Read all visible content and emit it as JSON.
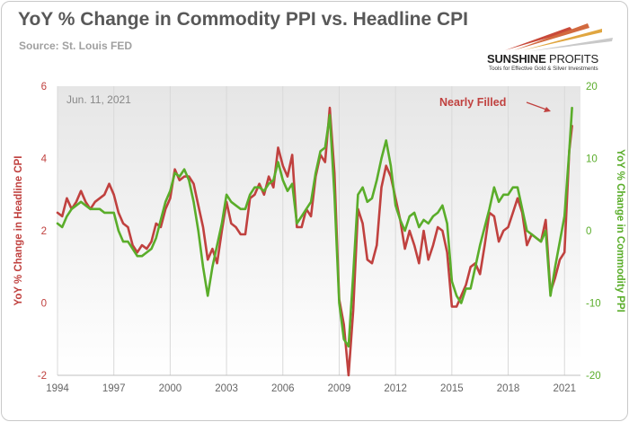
{
  "header": {
    "title": "YoY % Change in Commodity PPI vs. Headline CPI",
    "source": "Source: St. Louis FED"
  },
  "logo": {
    "name_bold": "SUNSHINE",
    "name_thin": "PROFITS",
    "tagline": "Tools for Effective Gold & Silver Investments",
    "icon": "sun-rays-logo-icon"
  },
  "colors": {
    "cpi": "#c0413f",
    "ppi": "#5aad2a",
    "plot_bg_top": "#e6e6e6",
    "plot_bg_bottom": "#ffffff",
    "grid": "#d9d9d9"
  },
  "chart_data": {
    "type": "line",
    "title": "YoY % Change in Commodity PPI vs. Headline CPI",
    "subtitle": "Source: St. Louis FED",
    "date_label": "Jun. 11, 2021",
    "annotation": "Nearly Filled",
    "xlabel": "",
    "xlim": [
      1994,
      2021.85
    ],
    "x_ticks": [
      1994,
      1997,
      2000,
      2003,
      2006,
      2009,
      2012,
      2015,
      2018,
      2021
    ],
    "left_axis": {
      "label": "YoY % Change in Headline CPI",
      "ylim": [
        -2,
        6
      ],
      "ticks": [
        -2,
        0,
        2,
        4,
        6
      ]
    },
    "right_axis": {
      "label": "YoY % Change in Commodity PPI",
      "ylim": [
        -20,
        20
      ],
      "ticks": [
        -20,
        -10,
        0,
        10,
        20
      ]
    },
    "grid": "vertical",
    "legend": "none",
    "series": [
      {
        "axis": "left",
        "x": [
          1994.0,
          1994.25,
          1994.5,
          1994.75,
          1995.0,
          1995.25,
          1995.5,
          1995.75,
          1996.0,
          1996.25,
          1996.5,
          1996.75,
          1997.0,
          1997.25,
          1997.5,
          1997.75,
          1998.0,
          1998.25,
          1998.5,
          1998.75,
          1999.0,
          1999.25,
          1999.5,
          1999.75,
          2000.0,
          2000.25,
          2000.5,
          2000.75,
          2001.0,
          2001.25,
          2001.5,
          2001.75,
          2002.0,
          2002.25,
          2002.5,
          2002.75,
          2003.0,
          2003.25,
          2003.5,
          2003.75,
          2004.0,
          2004.25,
          2004.5,
          2004.75,
          2005.0,
          2005.25,
          2005.5,
          2005.75,
          2006.0,
          2006.25,
          2006.5,
          2006.75,
          2007.0,
          2007.25,
          2007.5,
          2007.75,
          2008.0,
          2008.25,
          2008.5,
          2008.75,
          2009.0,
          2009.25,
          2009.5,
          2009.75,
          2010.0,
          2010.25,
          2010.5,
          2010.75,
          2011.0,
          2011.25,
          2011.5,
          2011.75,
          2012.0,
          2012.25,
          2012.5,
          2012.75,
          2013.0,
          2013.25,
          2013.5,
          2013.75,
          2014.0,
          2014.25,
          2014.5,
          2014.75,
          2015.0,
          2015.25,
          2015.5,
          2015.75,
          2016.0,
          2016.25,
          2016.5,
          2016.75,
          2017.0,
          2017.25,
          2017.5,
          2017.75,
          2018.0,
          2018.25,
          2018.5,
          2018.75,
          2019.0,
          2019.25,
          2019.5,
          2019.75,
          2020.0,
          2020.25,
          2020.5,
          2020.75,
          2021.0,
          2021.25,
          2021.4
        ],
        "y": [
          2.5,
          2.4,
          2.9,
          2.6,
          2.8,
          3.1,
          2.8,
          2.6,
          2.8,
          2.9,
          3.0,
          3.3,
          3.0,
          2.5,
          2.2,
          2.1,
          1.6,
          1.4,
          1.6,
          1.5,
          1.7,
          2.2,
          2.1,
          2.6,
          2.9,
          3.7,
          3.4,
          3.5,
          3.5,
          3.3,
          2.7,
          2.1,
          1.2,
          1.5,
          1.1,
          2.0,
          2.8,
          2.2,
          2.1,
          1.9,
          1.9,
          2.9,
          3.0,
          3.3,
          3.0,
          3.5,
          3.2,
          4.3,
          3.8,
          3.5,
          4.1,
          2.1,
          2.1,
          2.6,
          2.4,
          3.5,
          4.1,
          3.9,
          5.4,
          3.6,
          0.1,
          -0.6,
          -2.0,
          -0.2,
          2.6,
          2.2,
          1.2,
          1.1,
          1.6,
          3.2,
          3.8,
          3.5,
          2.9,
          2.3,
          1.5,
          2.0,
          1.6,
          1.1,
          2.0,
          1.2,
          1.6,
          2.1,
          2.0,
          1.4,
          -0.1,
          -0.1,
          0.2,
          0.5,
          1.0,
          1.1,
          0.8,
          1.6,
          2.5,
          2.4,
          1.7,
          2.0,
          2.1,
          2.5,
          2.9,
          2.5,
          1.6,
          1.9,
          1.8,
          1.7,
          2.3,
          0.3,
          0.7,
          1.2,
          1.4,
          4.2,
          4.9
        ]
      },
      {
        "axis": "right",
        "x": [
          1994.0,
          1994.25,
          1994.5,
          1994.75,
          1995.0,
          1995.25,
          1995.5,
          1995.75,
          1996.0,
          1996.25,
          1996.5,
          1996.75,
          1997.0,
          1997.25,
          1997.5,
          1997.75,
          1998.0,
          1998.25,
          1998.5,
          1998.75,
          1999.0,
          1999.25,
          1999.5,
          1999.75,
          2000.0,
          2000.25,
          2000.5,
          2000.75,
          2001.0,
          2001.25,
          2001.5,
          2001.75,
          2002.0,
          2002.25,
          2002.5,
          2002.75,
          2003.0,
          2003.25,
          2003.5,
          2003.75,
          2004.0,
          2004.25,
          2004.5,
          2004.75,
          2005.0,
          2005.25,
          2005.5,
          2005.75,
          2006.0,
          2006.25,
          2006.5,
          2006.75,
          2007.0,
          2007.25,
          2007.5,
          2007.75,
          2008.0,
          2008.25,
          2008.5,
          2008.75,
          2009.0,
          2009.25,
          2009.5,
          2009.75,
          2010.0,
          2010.25,
          2010.5,
          2010.75,
          2011.0,
          2011.25,
          2011.5,
          2011.75,
          2012.0,
          2012.25,
          2012.5,
          2012.75,
          2013.0,
          2013.25,
          2013.5,
          2013.75,
          2014.0,
          2014.25,
          2014.5,
          2014.75,
          2015.0,
          2015.25,
          2015.5,
          2015.75,
          2016.0,
          2016.25,
          2016.5,
          2016.75,
          2017.0,
          2017.25,
          2017.5,
          2017.75,
          2018.0,
          2018.25,
          2018.5,
          2018.75,
          2019.0,
          2019.25,
          2019.5,
          2019.75,
          2020.0,
          2020.25,
          2020.5,
          2020.75,
          2021.0,
          2021.25,
          2021.4
        ],
        "y": [
          1.0,
          0.5,
          2.0,
          3.0,
          3.5,
          4.0,
          3.5,
          3.0,
          3.0,
          3.0,
          2.5,
          2.5,
          2.5,
          0.0,
          -1.5,
          -1.5,
          -2.5,
          -3.5,
          -3.5,
          -3.0,
          -2.5,
          -1.0,
          1.5,
          4.0,
          5.5,
          8.0,
          7.5,
          8.5,
          7.0,
          4.0,
          0.0,
          -5.0,
          -9.0,
          -5.0,
          -2.0,
          1.0,
          5.0,
          4.0,
          3.5,
          3.0,
          3.0,
          5.0,
          6.0,
          6.0,
          5.5,
          6.5,
          7.0,
          9.5,
          7.0,
          5.5,
          6.5,
          1.0,
          2.0,
          3.0,
          4.0,
          8.0,
          11.0,
          11.5,
          16.0,
          5.0,
          -10.0,
          -15.0,
          -16.0,
          -6.0,
          5.0,
          6.0,
          4.0,
          4.5,
          7.0,
          10.0,
          12.5,
          9.0,
          3.5,
          1.5,
          0.0,
          2.0,
          2.5,
          0.5,
          1.5,
          1.0,
          2.0,
          2.5,
          3.5,
          1.0,
          -7.0,
          -9.0,
          -10.0,
          -8.0,
          -8.0,
          -5.0,
          -2.0,
          0.5,
          3.0,
          6.0,
          4.0,
          5.0,
          5.0,
          6.0,
          6.0,
          3.0,
          0.0,
          -0.5,
          -1.0,
          -1.5,
          0.0,
          -9.0,
          -5.0,
          -1.5,
          2.0,
          11.0,
          17.0
        ]
      }
    ]
  }
}
